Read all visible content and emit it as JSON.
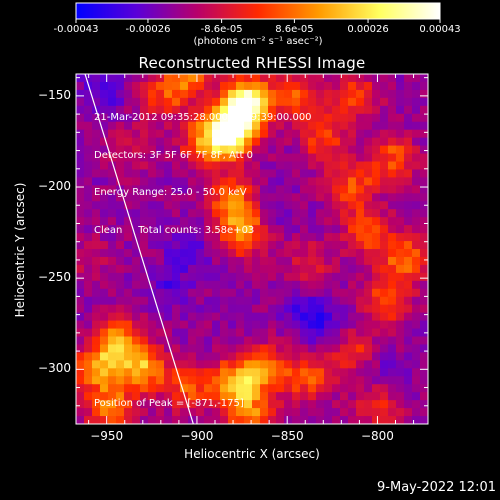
{
  "chart_data": {
    "type": "heatmap",
    "title": "Reconstructed RHESSI Image",
    "colorbar": {
      "ticks": [
        "-0.00043",
        "-0.00026",
        "-8.6e-05",
        "8.6e-05",
        "0.00026",
        "0.00043"
      ],
      "tick_values": [
        -0.00043,
        -0.00026,
        -8.6e-05,
        8.6e-05,
        0.00026,
        0.00043
      ],
      "range": [
        -0.00043,
        0.00043
      ],
      "label": "(photons cm⁻² s⁻¹ asec⁻²)",
      "colors": [
        "#0000ff",
        "#5a00d8",
        "#b8006a",
        "#ff2a00",
        "#ff9a00",
        "#ffff60",
        "#ffffff"
      ]
    },
    "xlabel": "Heliocentric X (arcsec)",
    "ylabel": "Heliocentric Y (arcsec)",
    "xlim": [
      -967,
      -772
    ],
    "ylim": [
      -330,
      -138
    ],
    "xticks": [
      -950,
      -900,
      -850,
      -800
    ],
    "yticks": [
      -150,
      -200,
      -250,
      -300
    ],
    "xticklabels": [
      "−950",
      "−900",
      "−850",
      "−800"
    ],
    "yticklabels": [
      "−150",
      "−200",
      "−250",
      "−300"
    ],
    "limb_line": [
      [
        -962,
        -138
      ],
      [
        -902,
        -330
      ]
    ],
    "info_lines": [
      "21-Mar-2012 09:35:28.000 to 09:39:00.000",
      "Detectors: 3F 5F 6F 7F 8F, Att 0",
      "Energy Range: 25.0 - 50.0 keV",
      "Clean     Total counts: 3.58e+03"
    ],
    "peak_label": "Position of Peak = [-871,-175]",
    "peak": [
      -871,
      -175
    ],
    "blobs": [
      {
        "x": -876,
        "y": -160,
        "intensity": 1.0
      },
      {
        "x": -882,
        "y": -172,
        "intensity": 0.85
      },
      {
        "x": -870,
        "y": -150,
        "intensity": 0.6
      },
      {
        "x": -895,
        "y": -175,
        "intensity": 0.55
      },
      {
        "x": -880,
        "y": -208,
        "intensity": 0.6
      },
      {
        "x": -874,
        "y": -225,
        "intensity": 0.55
      },
      {
        "x": -905,
        "y": -140,
        "intensity": 0.5
      },
      {
        "x": -920,
        "y": -150,
        "intensity": 0.35
      },
      {
        "x": -943,
        "y": -285,
        "intensity": 0.7
      },
      {
        "x": -930,
        "y": -300,
        "intensity": 0.65
      },
      {
        "x": -955,
        "y": -300,
        "intensity": 0.6
      },
      {
        "x": -948,
        "y": -322,
        "intensity": 0.55
      },
      {
        "x": -905,
        "y": -310,
        "intensity": 0.45
      },
      {
        "x": -878,
        "y": -308,
        "intensity": 0.75
      },
      {
        "x": -862,
        "y": -300,
        "intensity": 0.55
      },
      {
        "x": -870,
        "y": -325,
        "intensity": 0.5
      },
      {
        "x": -838,
        "y": -305,
        "intensity": 0.45
      },
      {
        "x": -818,
        "y": -290,
        "intensity": 0.4
      },
      {
        "x": -795,
        "y": -262,
        "intensity": 0.45
      },
      {
        "x": -785,
        "y": -240,
        "intensity": 0.5
      },
      {
        "x": -805,
        "y": -225,
        "intensity": 0.45
      },
      {
        "x": -815,
        "y": -200,
        "intensity": 0.45
      },
      {
        "x": -830,
        "y": -172,
        "intensity": 0.4
      },
      {
        "x": -845,
        "y": -150,
        "intensity": 0.45
      },
      {
        "x": -812,
        "y": -150,
        "intensity": 0.4
      },
      {
        "x": -792,
        "y": -185,
        "intensity": 0.45
      },
      {
        "x": -838,
        "y": -242,
        "intensity": 0.25
      },
      {
        "x": -800,
        "y": -320,
        "intensity": 0.35
      },
      {
        "x": -960,
        "y": -240,
        "intensity": 0.15
      },
      {
        "x": -935,
        "y": -180,
        "intensity": 0.2
      }
    ],
    "dips": [
      {
        "x": -950,
        "y": -145,
        "depth": 0.55
      },
      {
        "x": -838,
        "y": -270,
        "depth": 0.65
      },
      {
        "x": -826,
        "y": -282,
        "depth": 0.55
      },
      {
        "x": -905,
        "y": -235,
        "depth": 0.45
      },
      {
        "x": -915,
        "y": -255,
        "depth": 0.4
      },
      {
        "x": -860,
        "y": -212,
        "depth": 0.3
      },
      {
        "x": -795,
        "y": -305,
        "depth": 0.3
      }
    ]
  },
  "footer": {
    "date": "9-May-2022 12:01"
  }
}
